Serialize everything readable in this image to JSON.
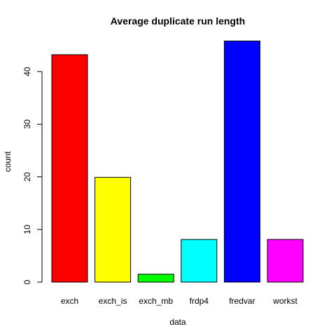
{
  "chart_data": {
    "type": "bar",
    "title": "Average duplicate run length",
    "xlabel": "data",
    "ylabel": "count",
    "categories": [
      "exch",
      "exch_is",
      "exch_mb",
      "frdp4",
      "fredvar",
      "workst"
    ],
    "values": [
      43.2,
      19.9,
      1.5,
      8.1,
      45.8,
      8.1
    ],
    "colors": [
      "#ff0000",
      "#ffff00",
      "#00ff00",
      "#00ffff",
      "#0000ff",
      "#ff00ff"
    ],
    "yticks": [
      0,
      10,
      20,
      30,
      40
    ],
    "ylim": [
      0,
      45.8
    ],
    "grid": false,
    "legend": "none"
  }
}
